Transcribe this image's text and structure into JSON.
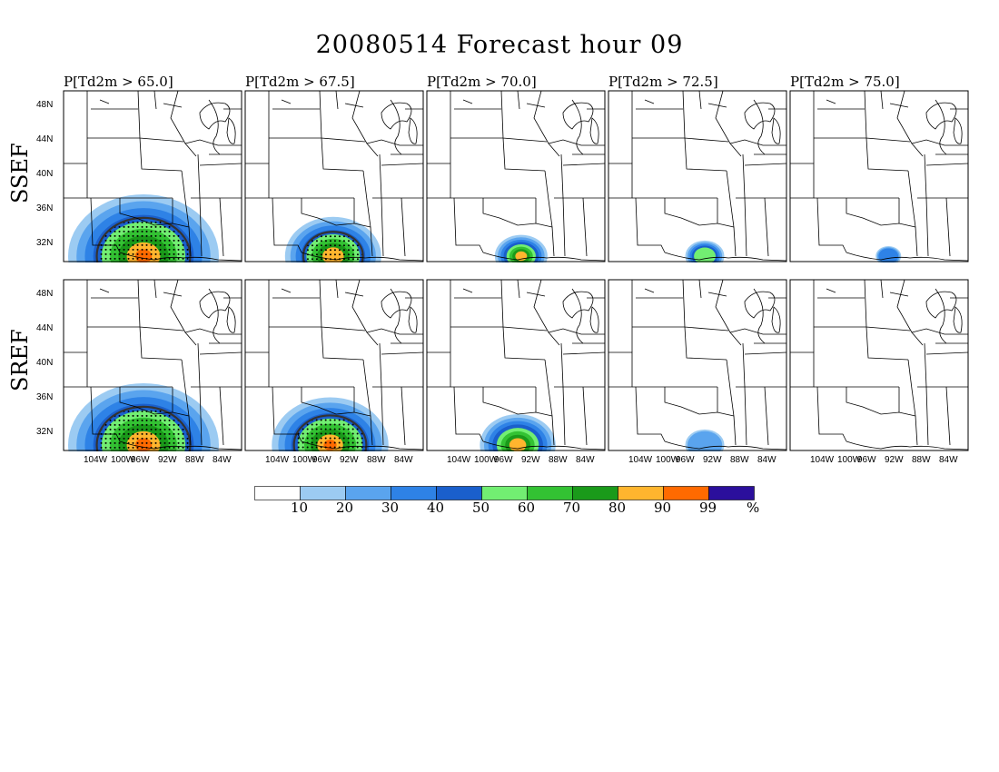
{
  "title": "20080514 Forecast hour 09",
  "column_titles": [
    "P[Td2m > 65.0]",
    "P[Td2m > 67.5]",
    "P[Td2m > 70.0]",
    "P[Td2m > 72.5]",
    "P[Td2m > 75.0]"
  ],
  "row_labels": [
    "SSEF",
    "SREF"
  ],
  "lat_labels": [
    "48N",
    "44N",
    "40N",
    "36N",
    "32N"
  ],
  "lon_labels": [
    "104W",
    "100W",
    "96W",
    "92W",
    "88W",
    "84W"
  ],
  "colorbar": {
    "colors": [
      "#ffffff",
      "#9ccbf2",
      "#5aa4ee",
      "#2e82e6",
      "#1a5fcc",
      "#72ee72",
      "#33c233",
      "#1a9a1a",
      "#ffb52e",
      "#ff6a00",
      "#2b0f9c"
    ],
    "labels": [
      "10",
      "20",
      "30",
      "40",
      "50",
      "60",
      "70",
      "80",
      "90",
      "99",
      "%"
    ]
  },
  "panels": [
    {
      "id": "ssef-65",
      "intensity": 1.0,
      "extent": 1.0,
      "hatched": true
    },
    {
      "id": "ssef-675",
      "intensity": 0.85,
      "extent": 0.6,
      "hatched": true
    },
    {
      "id": "ssef-70",
      "intensity": 0.8,
      "extent": 0.28,
      "hatched": false
    },
    {
      "id": "ssef-725",
      "intensity": 0.55,
      "extent": 0.18,
      "hatched": false
    },
    {
      "id": "ssef-75",
      "intensity": 0.3,
      "extent": 0.08,
      "hatched": false
    },
    {
      "id": "sref-65",
      "intensity": 1.0,
      "extent": 1.0,
      "hatched": true
    },
    {
      "id": "sref-675",
      "intensity": 0.9,
      "extent": 0.75,
      "hatched": true
    },
    {
      "id": "sref-70",
      "intensity": 0.85,
      "extent": 0.45,
      "hatched": false
    },
    {
      "id": "sref-725",
      "intensity": 0.2,
      "extent": 0.18,
      "hatched": false
    },
    {
      "id": "sref-75",
      "intensity": 0.0,
      "extent": 0.0,
      "hatched": false
    }
  ]
}
